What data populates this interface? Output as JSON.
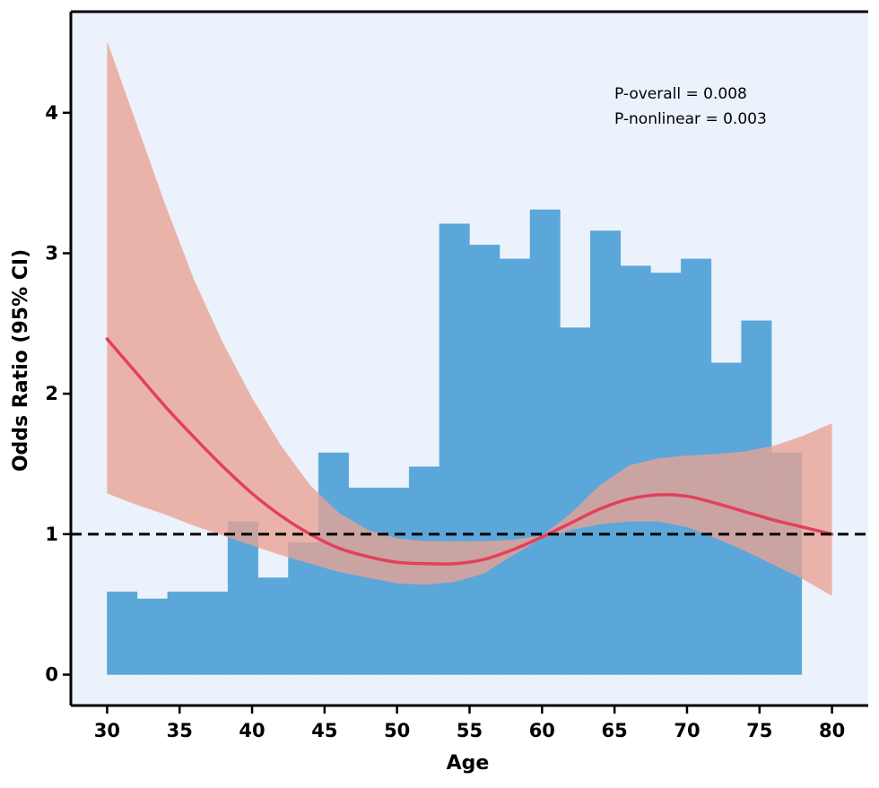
{
  "chart_data": {
    "type": "bar",
    "xlabel": "Age",
    "ylabel": "Odds Ratio (95% CI)",
    "xlim": [
      27.5,
      82.5
    ],
    "ylim": [
      -0.22,
      4.72
    ],
    "xticks": [
      30,
      35,
      40,
      45,
      50,
      55,
      60,
      65,
      70,
      75,
      80
    ],
    "yticks": [
      0,
      1,
      2,
      3,
      4
    ],
    "grid": false,
    "annotations": [
      "P-overall = 0.008",
      "P-nonlinear = 0.003"
    ],
    "reference_line": {
      "y": 1,
      "style": "dashed"
    },
    "histogram": {
      "bin_edges": [
        30,
        32.08,
        34.17,
        36.25,
        38.33,
        40.42,
        42.5,
        44.58,
        46.67,
        48.75,
        50.83,
        52.92,
        55,
        57.08,
        59.17,
        61.25,
        63.33,
        65.42,
        67.5,
        69.58,
        71.67,
        73.75,
        75.83,
        77.92
      ],
      "values": [
        0.59,
        0.54,
        0.59,
        0.59,
        1.09,
        0.69,
        0.94,
        1.58,
        1.33,
        1.33,
        1.48,
        3.21,
        3.06,
        2.96,
        3.31,
        2.47,
        3.16,
        2.91,
        2.86,
        2.96,
        2.22,
        2.52,
        1.58
      ],
      "color": "#5ba7da"
    },
    "spline": {
      "x": [
        30,
        32,
        34,
        36,
        38,
        40,
        42,
        44,
        46,
        48,
        50,
        52,
        54,
        56,
        58,
        60,
        62,
        64,
        66,
        68,
        70,
        72,
        74,
        76,
        78,
        80
      ],
      "or": [
        2.39,
        2.15,
        1.91,
        1.69,
        1.48,
        1.29,
        1.13,
        1.0,
        0.9,
        0.84,
        0.8,
        0.79,
        0.79,
        0.82,
        0.89,
        0.98,
        1.08,
        1.18,
        1.25,
        1.28,
        1.27,
        1.22,
        1.16,
        1.1,
        1.05,
        1.0
      ],
      "lower": [
        1.29,
        1.21,
        1.14,
        1.06,
        0.99,
        0.92,
        0.85,
        0.79,
        0.73,
        0.69,
        0.65,
        0.64,
        0.66,
        0.72,
        0.85,
        0.97,
        1.03,
        1.07,
        1.09,
        1.09,
        1.05,
        0.97,
        0.88,
        0.78,
        0.68,
        0.56
      ],
      "upper": [
        4.51,
        3.93,
        3.35,
        2.81,
        2.36,
        1.97,
        1.63,
        1.35,
        1.15,
        1.03,
        0.97,
        0.95,
        0.95,
        0.95,
        0.96,
        0.99,
        1.15,
        1.35,
        1.49,
        1.54,
        1.56,
        1.57,
        1.59,
        1.63,
        1.7,
        1.79
      ],
      "line_color": "#e2405b",
      "band_color": "#e9a294"
    },
    "colors": {
      "background": "#ebf2fb",
      "reference_line": "#000000"
    }
  }
}
